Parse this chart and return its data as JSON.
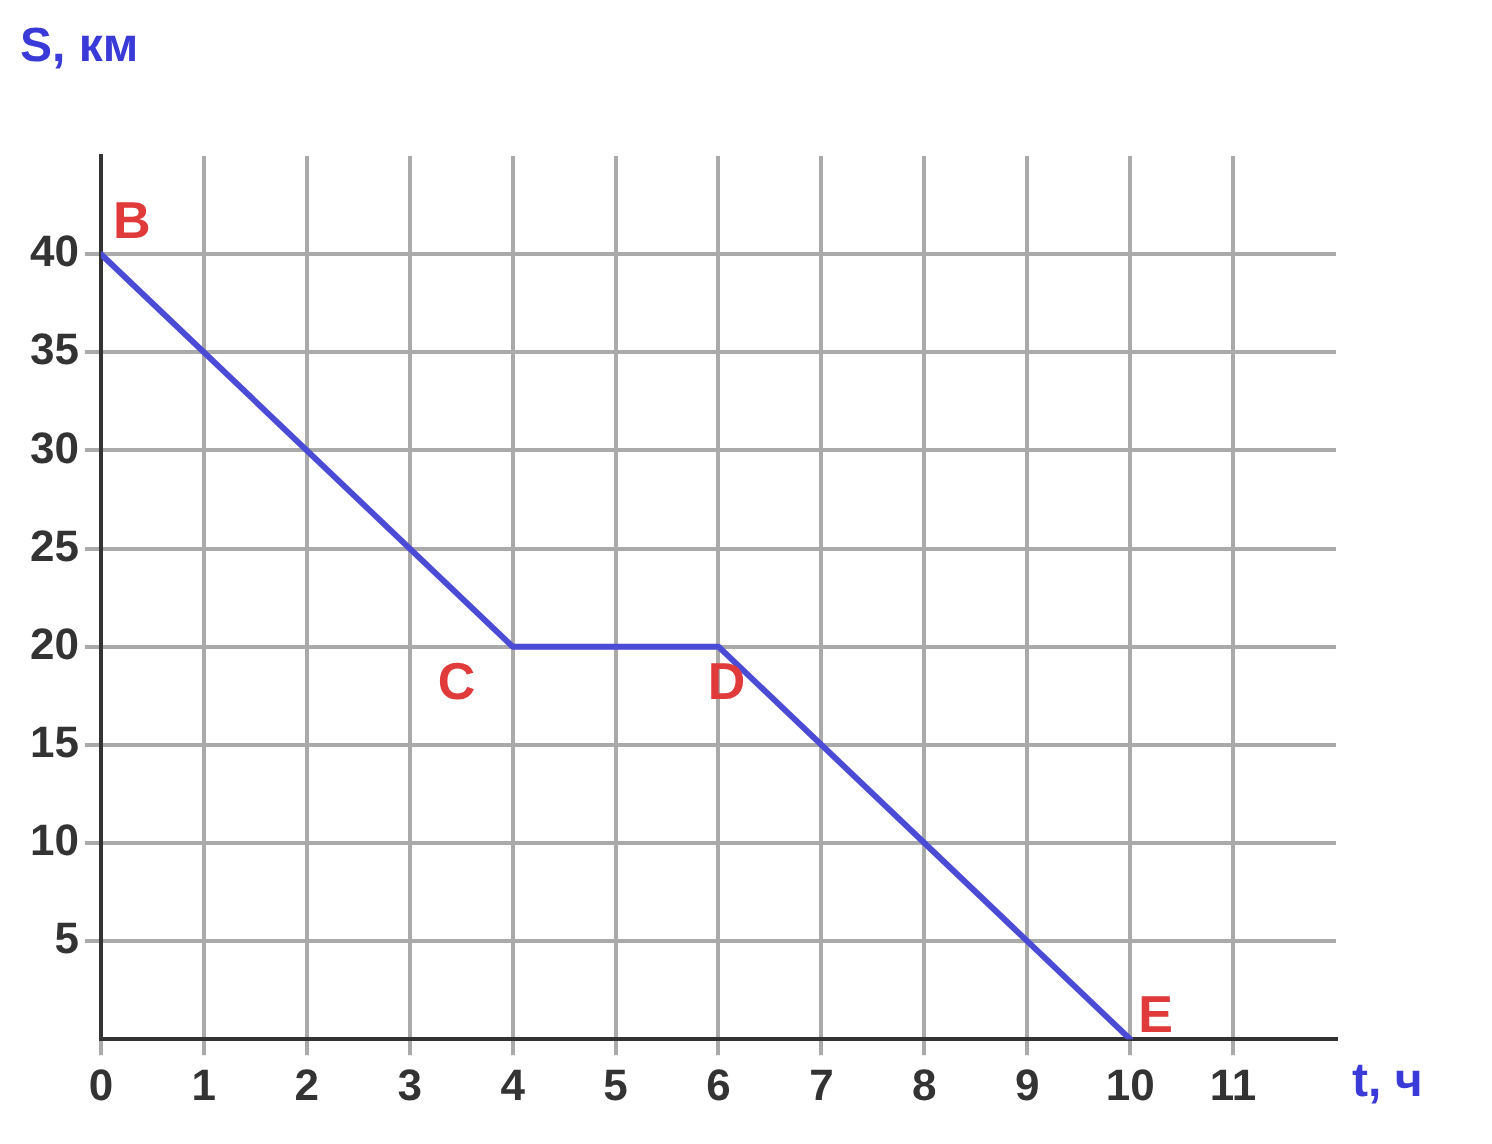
{
  "chart_data": {
    "type": "line",
    "xlabel": "t, ч",
    "ylabel": "S, км",
    "x": [
      0,
      4,
      6,
      10
    ],
    "series": [
      {
        "color": "#4b4bd6",
        "values": [
          40,
          20,
          20,
          0
        ]
      }
    ],
    "xlim": [
      0,
      12
    ],
    "xticks": [
      0,
      1,
      2,
      3,
      4,
      5,
      6,
      7,
      8,
      9,
      10,
      11
    ],
    "ylim": [
      0,
      45
    ],
    "yticks": [
      5,
      10,
      15,
      20,
      25,
      30,
      35,
      40
    ],
    "grid": true,
    "marker": "none",
    "line_style": "solid",
    "legend": false,
    "annotations": [
      {
        "text": "B",
        "x": 0,
        "y": 40
      },
      {
        "text": "C",
        "x": 4,
        "y": 20
      },
      {
        "text": "D",
        "x": 6,
        "y": 20
      },
      {
        "text": "E",
        "x": 10,
        "y": 0
      }
    ]
  }
}
